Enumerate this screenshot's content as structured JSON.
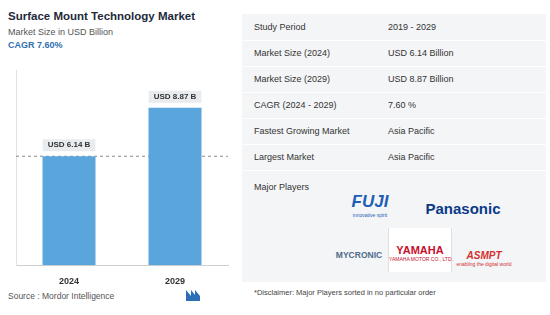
{
  "chart_data": {
    "type": "bar",
    "title": "Surface Mount Technology Market",
    "subtitle": "Market Size in USD Billion",
    "annotations": [
      "CAGR 7.60%"
    ],
    "categories": [
      "2024",
      "2029"
    ],
    "values": [
      6.14,
      8.87
    ],
    "value_labels": [
      "USD 6.14 B",
      "USD 8.87 B"
    ],
    "data_labels": true,
    "color": "#5aa5dc",
    "ylim": [
      0,
      11
    ],
    "tick_labels": "x",
    "grid": false
  },
  "source": "Source : Mordor Intelligence",
  "summary": [
    [
      "Study Period",
      "2019 - 2029"
    ],
    [
      "Market Size (2024)",
      "USD 6.14 Billion"
    ],
    [
      "Market Size (2029)",
      "USD 8.87 Billion"
    ],
    [
      "CAGR (2024 - 2029)",
      "7.60 %"
    ],
    [
      "Fastest Growing Market",
      "Asia Pacific"
    ],
    [
      "Largest Market",
      "Asia Pacific"
    ]
  ],
  "players_title": "Major Players",
  "players": [
    {
      "name": "FUJI",
      "tagline": "innovative spirit"
    },
    {
      "name": "Panasonic"
    },
    {
      "name": "MYCRONIC"
    },
    {
      "name": "YAMAHA",
      "tagline": "YAMAHA MOTOR CO., LTD."
    },
    {
      "name": "ASMPT",
      "tagline": "enabling the digital world"
    }
  ],
  "disclaimer": "*Disclaimer: Major Players sorted in no particular order"
}
